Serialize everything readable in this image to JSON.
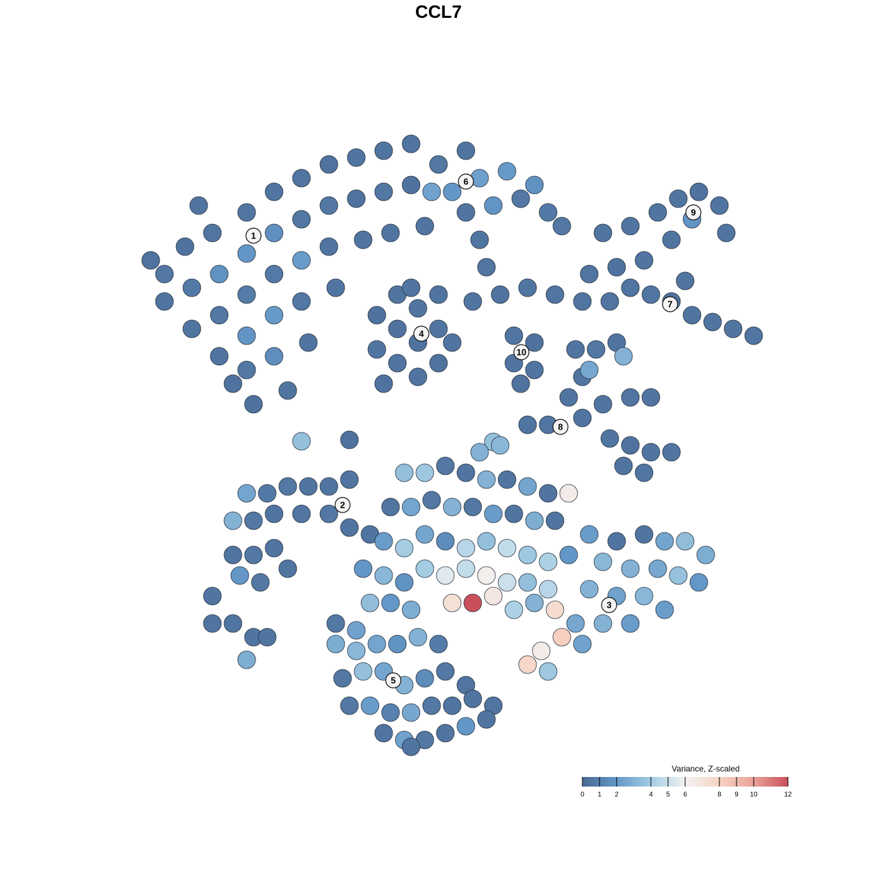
{
  "chart_data": {
    "type": "scatter",
    "title": "CCL7",
    "xlim": [
      -45,
      50
    ],
    "ylim": [
      -46,
      46
    ],
    "x": [
      -40,
      -40,
      -37,
      -36,
      -36,
      -33,
      -32,
      -32,
      -32,
      -30,
      -28,
      -28,
      -28,
      -28,
      -28,
      -27,
      -24,
      -24,
      -24,
      -24,
      -24,
      -22,
      -20,
      -20,
      -20,
      -20,
      -19,
      -16,
      -16,
      -16,
      -15,
      -12,
      -12,
      -11,
      -8,
      -8,
      -7,
      -4,
      -4,
      -2,
      -35,
      -42,
      0,
      2,
      4,
      6,
      8,
      10,
      12,
      14,
      16,
      18,
      -1,
      4,
      6,
      7,
      -9,
      -9,
      -6,
      -6,
      -6,
      -3,
      -3,
      -3,
      0,
      0,
      0,
      2,
      -8,
      -4,
      5,
      9,
      13,
      17,
      21,
      11,
      14,
      11,
      14,
      12,
      24,
      28,
      30,
      26,
      32,
      35,
      38,
      41,
      42,
      37,
      34,
      28,
      31,
      34,
      37,
      40,
      43,
      46,
      36,
      25,
      22,
      20,
      23,
      26,
      27,
      21,
      19,
      21,
      24,
      28,
      31,
      25,
      28,
      31,
      34,
      27,
      30,
      16,
      13,
      22,
      8,
      9,
      6,
      -28,
      -25,
      -22,
      -19,
      -16,
      -13,
      -30,
      -27,
      -24,
      -20,
      -16,
      -13,
      -10,
      -30,
      -27,
      -24,
      -22,
      -26,
      -29,
      -33,
      -30,
      -27,
      -33,
      -5,
      -2,
      1,
      4,
      7,
      10,
      13,
      16,
      19,
      -7,
      -4,
      -1,
      2,
      5,
      8,
      11,
      14,
      17,
      -8,
      -5,
      -2,
      1,
      4,
      7,
      10,
      13,
      16,
      19,
      -11,
      -8,
      -5,
      -2,
      1,
      4,
      7,
      10,
      13,
      16,
      -10,
      -7,
      -4,
      2,
      5,
      8,
      11,
      14,
      17,
      -12,
      -15,
      22,
      26,
      30,
      33,
      36,
      39,
      24,
      28,
      32,
      35,
      38,
      22,
      26,
      30,
      33,
      20,
      24,
      28,
      18,
      21,
      15,
      16,
      13,
      -15,
      -12,
      -9,
      -6,
      -3,
      0,
      -14,
      -11,
      -8,
      -5,
      -2,
      1,
      4,
      -13,
      -10,
      -7,
      -4,
      -1,
      2,
      5,
      8,
      -8,
      -5,
      -2,
      1,
      4,
      7,
      -4,
      -20,
      -13,
      -25,
      -28
    ],
    "y": [
      20,
      24,
      28,
      22,
      16,
      30,
      24,
      18,
      12,
      8,
      33,
      27,
      21,
      15,
      10,
      5,
      36,
      30,
      24,
      18,
      12,
      7,
      38,
      32,
      26,
      20,
      14,
      40,
      34,
      28,
      22,
      41,
      35,
      29,
      42,
      36,
      30,
      43,
      37,
      31,
      34,
      26,
      40,
      36,
      42,
      38,
      34,
      39,
      35,
      37,
      33,
      31,
      36,
      33,
      29,
      25,
      18,
      13,
      21,
      16,
      11,
      19,
      14,
      9,
      21,
      16,
      11,
      14,
      8,
      22,
      20,
      21,
      22,
      21,
      20,
      15,
      14,
      11,
      10,
      8,
      30,
      31,
      26,
      25,
      33,
      35,
      36,
      34,
      30,
      32,
      29,
      22,
      21,
      20,
      18,
      17,
      16,
      15,
      23,
      20,
      24,
      13,
      13,
      14,
      12,
      9,
      6,
      3,
      5,
      6,
      6,
      0,
      -1,
      -2,
      -2,
      -4,
      -5,
      2,
      2,
      10,
      -0.5,
      -1,
      -2,
      -8,
      -8,
      -7,
      -7,
      -7,
      -6,
      -12,
      -12,
      -11,
      -11,
      -11,
      -13,
      -14,
      -17,
      -17,
      -16,
      -19,
      -21,
      -20,
      -23,
      -27,
      -29,
      -27,
      -5,
      -5,
      -4,
      -5,
      -6,
      -6,
      -7,
      -8,
      -8,
      -10,
      -10,
      -9,
      -10,
      -10,
      -11,
      -11,
      -12,
      -12,
      -15,
      -16,
      -14,
      -15,
      -16,
      -15,
      -16,
      -17,
      -18,
      -17,
      -19,
      -20,
      -21,
      -19,
      -20,
      -19,
      -20,
      -21,
      -21,
      -22,
      -24,
      -24,
      -25,
      -24,
      -24,
      -23,
      -25,
      -24,
      -25,
      -28,
      -27,
      -14,
      -15,
      -14,
      -15,
      -15,
      -17,
      -18,
      -19,
      -19,
      -20,
      -21,
      -22,
      -23,
      -23,
      -25,
      -27,
      -27,
      -27,
      -29,
      -30,
      -31,
      -34,
      -33,
      -30,
      -31,
      -30,
      -30,
      -29,
      -30,
      -35,
      -34,
      -34,
      -36,
      -35,
      -34,
      -36,
      -39,
      -39,
      -40,
      -40,
      -39,
      -39,
      -38,
      -39,
      -43,
      -44,
      -44,
      -43,
      -42,
      -41,
      -45,
      -0.4,
      -0.2,
      -29,
      -32.3
    ],
    "values": [
      0.5,
      0.6,
      0.4,
      0.7,
      0.5,
      0.5,
      1.8,
      0.6,
      0.5,
      0.4,
      0.5,
      2.0,
      0.8,
      1.9,
      0.6,
      0.4,
      0.5,
      1.7,
      0.7,
      2.1,
      1.6,
      0.5,
      0.5,
      0.6,
      2.2,
      0.6,
      0.5,
      0.4,
      0.6,
      0.5,
      0.5,
      0.5,
      0.4,
      0.5,
      0.5,
      0.6,
      0.5,
      0.5,
      0.4,
      0.5,
      0.5,
      0.4,
      0.6,
      2.0,
      0.5,
      2.3,
      1.9,
      2.1,
      0.6,
      1.8,
      0.7,
      0.6,
      2.4,
      0.5,
      0.5,
      0.5,
      0.4,
      0.5,
      0.5,
      0.4,
      0.5,
      0.5,
      0.4,
      0.5,
      0.5,
      0.5,
      0.4,
      0.5,
      0.4,
      0.5,
      0.5,
      0.4,
      0.5,
      0.5,
      0.5,
      0.5,
      0.4,
      0.5,
      0.5,
      0.4,
      0.5,
      0.5,
      0.5,
      0.4,
      0.5,
      0.5,
      0.4,
      0.5,
      0.5,
      1.9,
      0.5,
      0.5,
      0.5,
      0.4,
      0.5,
      0.5,
      0.5,
      0.5,
      0.5,
      0.5,
      0.5,
      0.5,
      0.6,
      0.5,
      3.0,
      0.5,
      0.5,
      0.5,
      0.5,
      0.5,
      0.5,
      0.5,
      0.4,
      0.5,
      0.5,
      0.5,
      0.5,
      0.5,
      0.5,
      2.6,
      3.5,
      3.2,
      3.0,
      2.5,
      0.7,
      0.6,
      0.5,
      0.5,
      0.5,
      3.0,
      0.6,
      0.5,
      0.5,
      0.6,
      0.5,
      0.5,
      0.5,
      0.6,
      0.5,
      0.5,
      0.6,
      2.0,
      0.5,
      0.5,
      0.5,
      0.5,
      3.5,
      3.8,
      0.6,
      0.5,
      3.0,
      0.5,
      2.5,
      0.5,
      6.5,
      0.5,
      2.5,
      0.6,
      3.0,
      0.6,
      2.2,
      0.5,
      2.8,
      0.5,
      2.2,
      4.0,
      2.5,
      1.5,
      4.5,
      3.5,
      4.8,
      3.8,
      4.2,
      2.0,
      2.0,
      3.2,
      1.8,
      4.0,
      5.5,
      4.8,
      6.2,
      5.0,
      3.5,
      4.5,
      3.4,
      2.0,
      2.8,
      7.2,
      12,
      6.8,
      4.2,
      3.0,
      7.5,
      2.4,
      0.6,
      2.2,
      0.5,
      0.5,
      2.5,
      3.4,
      2.8,
      3.2,
      3.0,
      2.6,
      3.6,
      2.0,
      3.0,
      2.4,
      3.2,
      2.2,
      2.6,
      3.0,
      2.2,
      8.2,
      2.4,
      6.5,
      3.8,
      7.8,
      2.8,
      3.2,
      2.5,
      1.8,
      3.0,
      0.8,
      0.6,
      3.5,
      2.5,
      3.0,
      1.5,
      0.6,
      0.5,
      0.6,
      2.2,
      1.0,
      2.6,
      0.6,
      0.5,
      0.5,
      0.5,
      0.5,
      2.4,
      0.6,
      0.5,
      2.0,
      0.5,
      0.5,
      3.5,
      0.4,
      0.5,
      2.8
    ],
    "clusters": [
      {
        "label": "1",
        "x": -27,
        "y": 29.6
      },
      {
        "label": "2",
        "x": -14,
        "y": -9.7
      },
      {
        "label": "3",
        "x": 24.9,
        "y": -24.3
      },
      {
        "label": "4",
        "x": -2.5,
        "y": 15.3
      },
      {
        "label": "5",
        "x": -6.6,
        "y": -35.3
      },
      {
        "label": "6",
        "x": 4,
        "y": 37.5
      },
      {
        "label": "7",
        "x": 33.8,
        "y": 19.6
      },
      {
        "label": "8",
        "x": 17.8,
        "y": 1.7
      },
      {
        "label": "9",
        "x": 37.2,
        "y": 33
      },
      {
        "label": "10",
        "x": 12.1,
        "y": 12.6
      }
    ],
    "colorbar": {
      "title": "Variance, Z-scaled",
      "clim": [
        0,
        12
      ],
      "ticks": [
        0,
        1,
        2,
        4,
        5,
        6,
        8,
        9,
        10,
        12
      ],
      "colors": [
        "#4a6a94",
        "#6497c7",
        "#a4cde3",
        "#f2f2f2",
        "#f7d4c4",
        "#e9a198",
        "#c9505b"
      ]
    }
  }
}
